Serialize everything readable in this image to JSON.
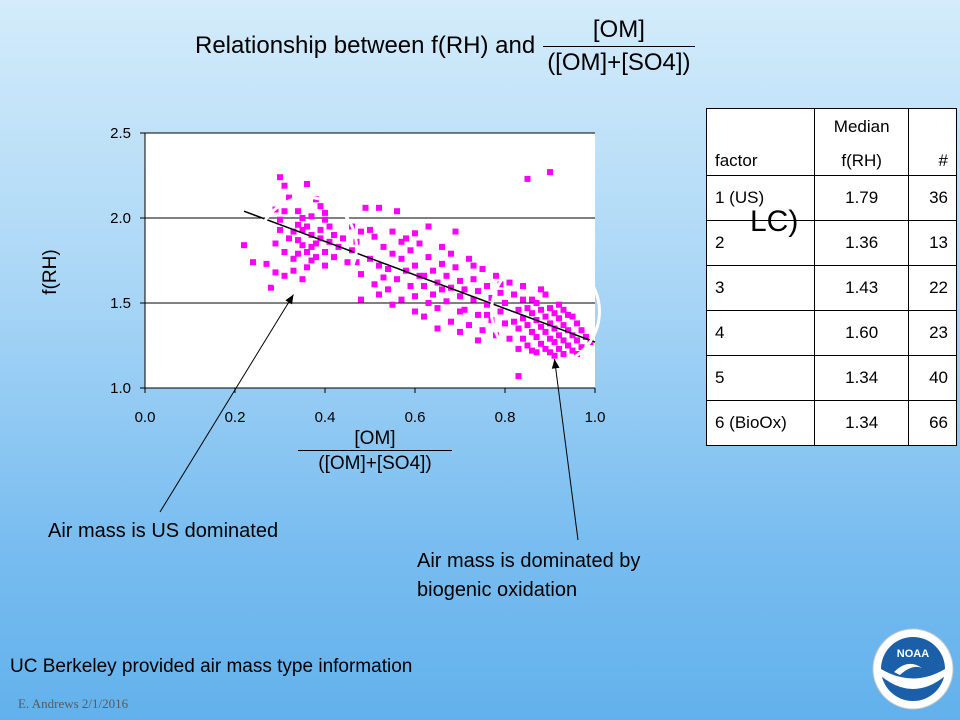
{
  "slide": {
    "title_prefix": "Relationship between f(RH) and",
    "title_numerator": "[OM]",
    "title_denominator": "([OM]+[SO4])",
    "annotation_us": "Air mass is US dominated",
    "annotation_bio_line1": "Air mass is dominated by",
    "annotation_bio_line2": "biogenic oxidation",
    "overlap_text": "LC)",
    "footer": "UC Berkeley provided air mass type information",
    "byline": "E. Andrews   2/1/2016",
    "logo_text": "NOAA",
    "colors": {
      "background_top": "#d4ecfb",
      "background_bottom": "#62b1ec",
      "points": "#ff00ff",
      "circles": "#ffffff"
    }
  },
  "table": {
    "headers": {
      "factor": "factor",
      "median_line1": "Median",
      "median_line2": "f(RH)",
      "count": "#"
    },
    "rows": [
      {
        "factor": "1 (US)",
        "median": "1.79",
        "count": "36"
      },
      {
        "factor": "2",
        "median": "1.36",
        "count": "13"
      },
      {
        "factor": "3",
        "median": "1.43",
        "count": "22"
      },
      {
        "factor": "4",
        "median": "1.60",
        "count": "23"
      },
      {
        "factor": "5",
        "median": "1.34",
        "count": "40"
      },
      {
        "factor": "6 (BioOx)",
        "median": "1.34",
        "count": "66"
      }
    ]
  },
  "chart_data": {
    "type": "scatter",
    "ylabel": "f(RH)",
    "xlabel_numerator": "[OM]",
    "xlabel_denominator": "([OM]+[SO4])",
    "xlim": [
      0.0,
      1.0
    ],
    "ylim": [
      1.0,
      2.5
    ],
    "xticks": [
      "0.0",
      "0.2",
      "0.4",
      "0.6",
      "0.8",
      "1.0"
    ],
    "yticks": [
      "1.0",
      "1.5",
      "2.0",
      "2.5"
    ],
    "grid": "horizontal",
    "trendline": {
      "x": [
        0.22,
        1.0
      ],
      "y": [
        2.04,
        1.27
      ]
    },
    "highlight_circles": [
      {
        "name": "us-dominated",
        "cx": 0.36,
        "cy": 1.83,
        "r_x": 0.11
      },
      {
        "name": "biogenic-oxidation",
        "cx": 0.89,
        "cy": 1.45,
        "r_x": 0.12
      }
    ],
    "points": [
      [
        0.22,
        1.84
      ],
      [
        0.24,
        1.74
      ],
      [
        0.27,
        1.73
      ],
      [
        0.28,
        1.59
      ],
      [
        0.29,
        1.85
      ],
      [
        0.29,
        1.68
      ],
      [
        0.3,
        2.24
      ],
      [
        0.31,
        2.04
      ],
      [
        0.31,
        2.19
      ],
      [
        0.31,
        1.66
      ],
      [
        0.33,
        1.92
      ],
      [
        0.33,
        1.76
      ],
      [
        0.34,
        2.04
      ],
      [
        0.34,
        1.87
      ],
      [
        0.35,
        1.84
      ],
      [
        0.35,
        1.64
      ],
      [
        0.36,
        2.2
      ],
      [
        0.36,
        1.95
      ],
      [
        0.37,
        1.9
      ],
      [
        0.37,
        1.75
      ],
      [
        0.38,
        2.11
      ],
      [
        0.39,
        2.07
      ],
      [
        0.4,
        1.99
      ],
      [
        0.4,
        1.8
      ],
      [
        0.41,
        1.95
      ],
      [
        0.43,
        1.83
      ],
      [
        0.29,
        2.05
      ],
      [
        0.3,
        1.93
      ],
      [
        0.32,
        1.88
      ],
      [
        0.32,
        2.12
      ],
      [
        0.34,
        1.79
      ],
      [
        0.35,
        2.0
      ],
      [
        0.36,
        1.71
      ],
      [
        0.37,
        2.01
      ],
      [
        0.38,
        1.85
      ],
      [
        0.39,
        1.93
      ],
      [
        0.4,
        1.72
      ],
      [
        0.41,
        1.86
      ],
      [
        0.42,
        1.77
      ],
      [
        0.33,
        1.69
      ],
      [
        0.35,
        1.93
      ],
      [
        0.36,
        1.8
      ],
      [
        0.38,
        1.77
      ],
      [
        0.39,
        1.88
      ],
      [
        0.31,
        1.8
      ],
      [
        0.3,
        1.99
      ],
      [
        0.34,
        1.96
      ],
      [
        0.37,
        1.83
      ],
      [
        0.4,
        2.03
      ],
      [
        0.42,
        1.9
      ],
      [
        0.45,
        1.74
      ],
      [
        0.46,
        1.95
      ],
      [
        0.47,
        1.86
      ],
      [
        0.48,
        1.67
      ],
      [
        0.48,
        1.92
      ],
      [
        0.49,
        2.06
      ],
      [
        0.5,
        1.76
      ],
      [
        0.51,
        1.61
      ],
      [
        0.51,
        1.89
      ],
      [
        0.52,
        1.72
      ],
      [
        0.52,
        2.06
      ],
      [
        0.53,
        1.83
      ],
      [
        0.54,
        1.58
      ],
      [
        0.54,
        1.7
      ],
      [
        0.55,
        1.92
      ],
      [
        0.55,
        1.79
      ],
      [
        0.56,
        1.64
      ],
      [
        0.56,
        2.04
      ],
      [
        0.57,
        1.76
      ],
      [
        0.57,
        1.52
      ],
      [
        0.58,
        1.88
      ],
      [
        0.58,
        1.69
      ],
      [
        0.59,
        1.6
      ],
      [
        0.59,
        1.81
      ],
      [
        0.6,
        1.54
      ],
      [
        0.6,
        1.72
      ],
      [
        0.61,
        1.85
      ],
      [
        0.61,
        1.66
      ],
      [
        0.62,
        1.42
      ],
      [
        0.62,
        1.6
      ],
      [
        0.63,
        1.77
      ],
      [
        0.63,
        1.95
      ],
      [
        0.64,
        1.55
      ],
      [
        0.64,
        1.69
      ],
      [
        0.65,
        1.47
      ],
      [
        0.65,
        1.62
      ],
      [
        0.66,
        1.83
      ],
      [
        0.66,
        1.73
      ],
      [
        0.67,
        1.51
      ],
      [
        0.67,
        1.66
      ],
      [
        0.68,
        1.59
      ],
      [
        0.68,
        1.39
      ],
      [
        0.69,
        1.71
      ],
      [
        0.69,
        1.92
      ],
      [
        0.7,
        1.54
      ],
      [
        0.7,
        1.63
      ],
      [
        0.71,
        1.46
      ],
      [
        0.71,
        1.58
      ],
      [
        0.72,
        1.76
      ],
      [
        0.72,
        1.37
      ],
      [
        0.73,
        1.52
      ],
      [
        0.73,
        1.64
      ],
      [
        0.74,
        1.43
      ],
      [
        0.74,
        1.57
      ],
      [
        0.75,
        1.7
      ],
      [
        0.75,
        1.34
      ],
      [
        0.76,
        1.49
      ],
      [
        0.76,
        1.6
      ],
      [
        0.77,
        1.4
      ],
      [
        0.77,
        1.53
      ],
      [
        0.78,
        1.66
      ],
      [
        0.78,
        1.31
      ],
      [
        0.79,
        1.45
      ],
      [
        0.79,
        1.56
      ],
      [
        0.8,
        1.38
      ],
      [
        0.8,
        1.5
      ],
      [
        0.81,
        1.62
      ],
      [
        0.81,
        1.29
      ],
      [
        0.46,
        1.81
      ],
      [
        0.5,
        1.93
      ],
      [
        0.53,
        1.65
      ],
      [
        0.57,
        1.86
      ],
      [
        0.6,
        1.91
      ],
      [
        0.63,
        1.5
      ],
      [
        0.66,
        1.58
      ],
      [
        0.68,
        1.79
      ],
      [
        0.7,
        1.45
      ],
      [
        0.73,
        1.72
      ],
      [
        0.76,
        1.43
      ],
      [
        0.79,
        1.61
      ],
      [
        0.48,
        1.52
      ],
      [
        0.55,
        1.49
      ],
      [
        0.6,
        1.45
      ],
      [
        0.65,
        1.35
      ],
      [
        0.7,
        1.33
      ],
      [
        0.52,
        1.55
      ],
      [
        0.62,
        1.66
      ],
      [
        0.74,
        1.28
      ],
      [
        0.44,
        1.88
      ],
      [
        0.47,
        1.74
      ],
      [
        0.82,
        1.55
      ],
      [
        0.83,
        1.46
      ],
      [
        0.83,
        1.35
      ],
      [
        0.84,
        1.52
      ],
      [
        0.84,
        1.41
      ],
      [
        0.84,
        1.29
      ],
      [
        0.85,
        1.47
      ],
      [
        0.85,
        1.37
      ],
      [
        0.85,
        1.25
      ],
      [
        0.86,
        1.44
      ],
      [
        0.86,
        1.33
      ],
      [
        0.86,
        1.22
      ],
      [
        0.87,
        1.5
      ],
      [
        0.87,
        1.4
      ],
      [
        0.87,
        1.3
      ],
      [
        0.88,
        1.46
      ],
      [
        0.88,
        1.36
      ],
      [
        0.88,
        1.26
      ],
      [
        0.89,
        1.42
      ],
      [
        0.89,
        1.33
      ],
      [
        0.89,
        1.23
      ],
      [
        0.9,
        1.38
      ],
      [
        0.9,
        1.29
      ],
      [
        0.9,
        1.21
      ],
      [
        0.91,
        1.44
      ],
      [
        0.91,
        1.35
      ],
      [
        0.91,
        1.27
      ],
      [
        0.92,
        1.41
      ],
      [
        0.92,
        1.31
      ],
      [
        0.92,
        1.23
      ],
      [
        0.93,
        1.37
      ],
      [
        0.93,
        1.28
      ],
      [
        0.93,
        1.2
      ],
      [
        0.94,
        1.34
      ],
      [
        0.94,
        1.25
      ],
      [
        0.95,
        1.42
      ],
      [
        0.95,
        1.31
      ],
      [
        0.95,
        1.22
      ],
      [
        0.96,
        1.38
      ],
      [
        0.96,
        1.28
      ],
      [
        0.97,
        1.34
      ],
      [
        0.97,
        1.24
      ],
      [
        0.98,
        1.3
      ],
      [
        0.99,
        1.27
      ],
      [
        0.86,
        1.52
      ],
      [
        0.88,
        1.58
      ],
      [
        0.9,
        1.47
      ],
      [
        0.92,
        1.49
      ],
      [
        0.84,
        1.6
      ],
      [
        0.87,
        1.21
      ],
      [
        0.94,
        1.43
      ],
      [
        0.96,
        1.2
      ],
      [
        0.83,
        1.23
      ],
      [
        0.91,
        1.19
      ],
      [
        0.85,
        2.23
      ],
      [
        0.9,
        2.27
      ],
      [
        0.83,
        1.07
      ],
      [
        0.82,
        1.39
      ],
      [
        0.89,
        1.55
      ],
      [
        0.93,
        1.46
      ]
    ]
  }
}
